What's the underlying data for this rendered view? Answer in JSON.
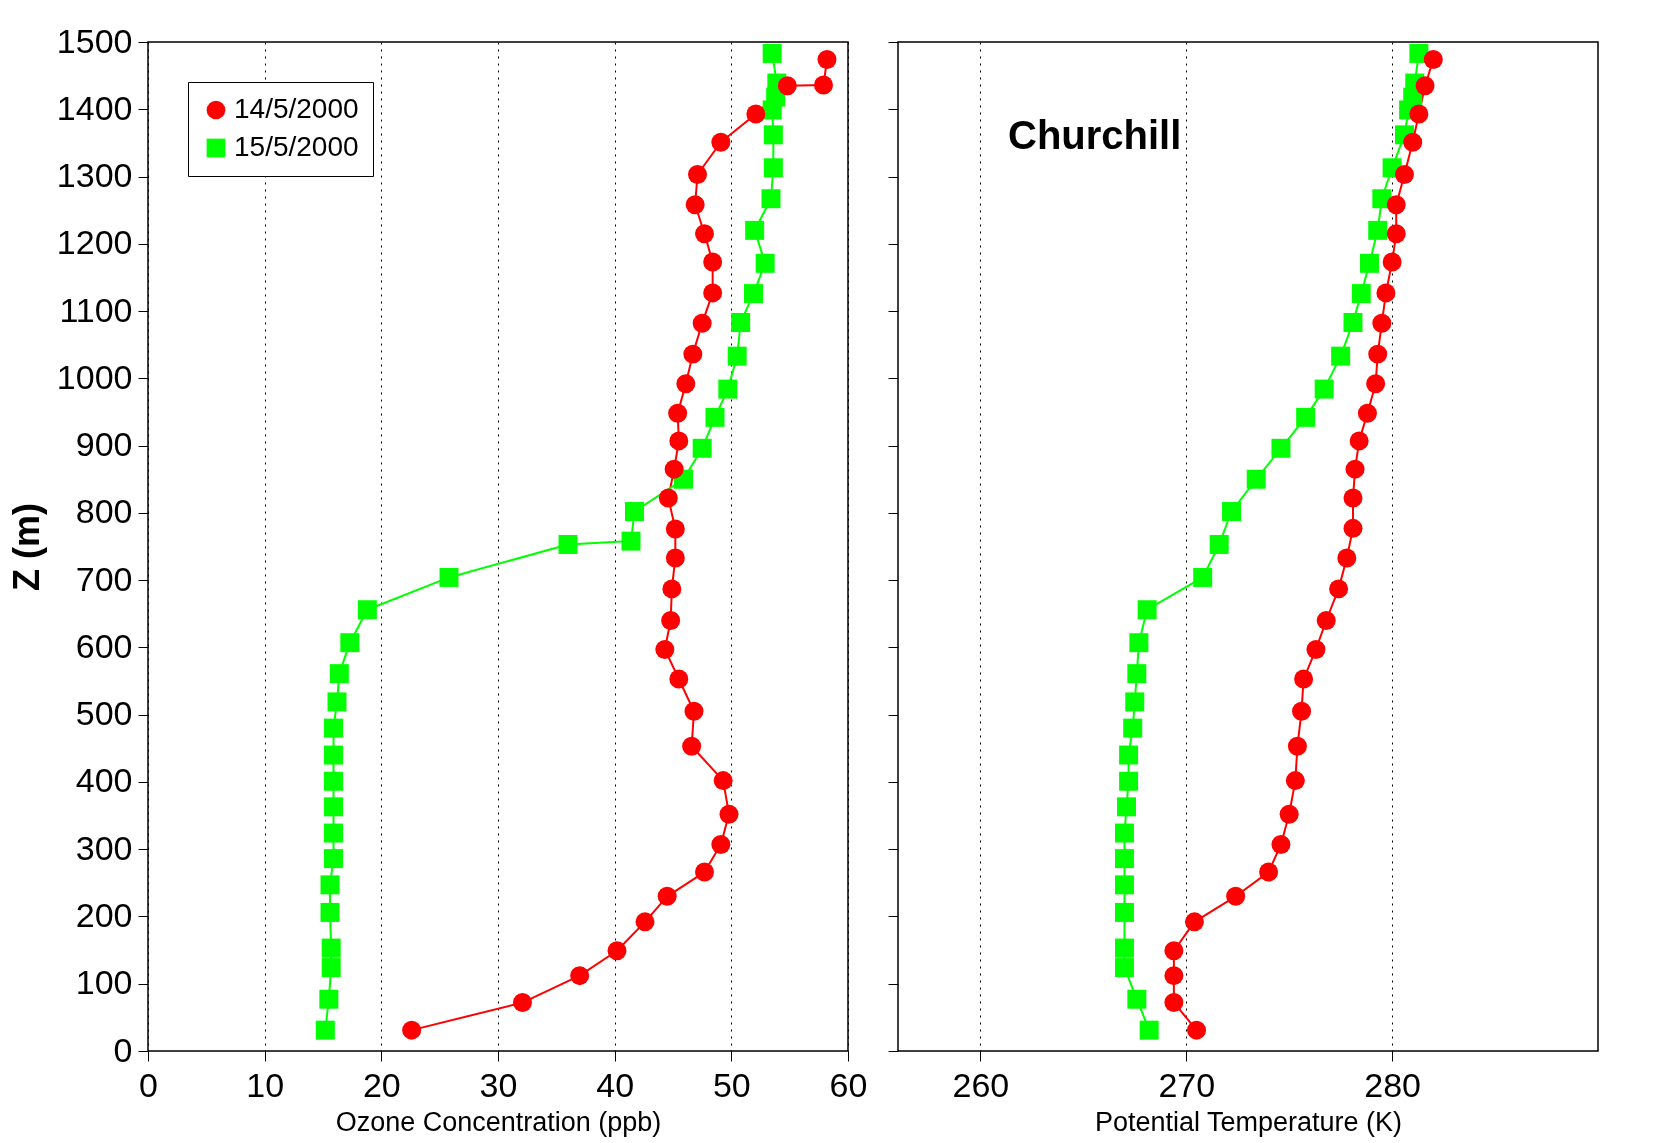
{
  "chart_data": [
    {
      "type": "line",
      "xlabel": "Ozone Concentration (ppb)",
      "ylabel": "Z (m)",
      "xlim": [
        0,
        60
      ],
      "xticks": [
        0,
        10,
        20,
        30,
        40,
        50,
        60
      ],
      "ylim": [
        0,
        1500
      ],
      "yticks": [
        0,
        100,
        200,
        300,
        400,
        500,
        600,
        700,
        800,
        900,
        1000,
        1100,
        1200,
        1300,
        1400,
        1500
      ],
      "grid": "x",
      "legend": "top left",
      "series": [
        {
          "name": "14/5/2000",
          "color": "#ff0000",
          "marker": "circle",
          "x": [
            22.6,
            32.1,
            37.0,
            40.2,
            42.6,
            44.5,
            47.7,
            49.1,
            49.8,
            49.3,
            46.6,
            46.8,
            45.5,
            44.3,
            44.8,
            44.9,
            45.2,
            45.2,
            44.6,
            45.1,
            45.5,
            45.4,
            46.1,
            46.7,
            47.5,
            48.4,
            48.4,
            47.7,
            46.9,
            47.1,
            49.1,
            52.1,
            54.8,
            57.9,
            58.2
          ],
          "values": [
            31,
            72,
            112,
            149,
            192,
            230,
            266,
            307,
            352,
            402,
            453,
            505,
            553,
            597,
            640,
            687,
            733,
            776,
            822,
            865,
            907,
            948,
            992,
            1036,
            1082,
            1127,
            1173,
            1215,
            1258,
            1303,
            1351,
            1393,
            1435,
            1436,
            1474
          ]
        },
        {
          "name": "15/5/2000",
          "color": "#00ff00",
          "marker": "square",
          "x": [
            15.2,
            15.5,
            15.7,
            15.7,
            15.6,
            15.6,
            15.9,
            15.9,
            15.9,
            15.9,
            15.9,
            15.9,
            16.2,
            16.4,
            17.3,
            18.8,
            25.8,
            36.0,
            41.4,
            41.7,
            45.9,
            47.5,
            48.6,
            49.7,
            50.5,
            50.8,
            51.9,
            52.9,
            52.0,
            53.4,
            53.6,
            53.6,
            53.5,
            53.8,
            53.9,
            53.5
          ],
          "values": [
            31,
            77,
            124,
            153,
            206,
            247,
            286,
            324,
            363,
            401,
            440,
            480,
            519,
            561,
            607,
            656,
            704,
            753,
            758,
            802,
            850,
            896,
            942,
            984,
            1033,
            1083,
            1126,
            1171,
            1220,
            1267,
            1313,
            1362,
            1399,
            1418,
            1439,
            1483
          ]
        }
      ]
    },
    {
      "type": "line",
      "xlabel": "Potential Temperature (K)",
      "annotations": [
        "Churchill"
      ],
      "xlim": [
        256,
        290
      ],
      "xticks": [
        260,
        270,
        280
      ],
      "ylim": [
        0,
        1500
      ],
      "yticks": [
        0,
        100,
        200,
        300,
        400,
        500,
        600,
        700,
        800,
        900,
        1000,
        1100,
        1200,
        1300,
        1400,
        1500
      ],
      "grid": "x",
      "tick_labels": "x",
      "series": [
        {
          "color": "#ff0000",
          "marker": "circle",
          "x": [
            270.5,
            269.4,
            269.4,
            269.4,
            270.4,
            272.4,
            274.0,
            274.6,
            275.0,
            275.3,
            275.4,
            275.6,
            275.7,
            276.3,
            276.8,
            277.4,
            277.8,
            278.1,
            278.1,
            278.2,
            278.4,
            278.8,
            279.2,
            279.3,
            279.5,
            279.7,
            280.0,
            280.2,
            280.2,
            280.6,
            281.0,
            281.3,
            281.6,
            282.0
          ],
          "values": [
            31,
            72,
            112,
            149,
            192,
            230,
            266,
            307,
            352,
            402,
            453,
            505,
            553,
            597,
            640,
            687,
            733,
            777,
            822,
            865,
            907,
            948,
            992,
            1036,
            1082,
            1127,
            1173,
            1215,
            1258,
            1303,
            1351,
            1393,
            1435,
            1474
          ]
        },
        {
          "color": "#00ff00",
          "marker": "square",
          "x": [
            268.2,
            267.6,
            267.0,
            267.0,
            267.0,
            267.0,
            267.0,
            267.0,
            267.1,
            267.2,
            267.2,
            267.4,
            267.5,
            267.6,
            267.7,
            268.1,
            270.8,
            271.6,
            272.2,
            273.4,
            274.6,
            275.8,
            276.7,
            277.5,
            278.1,
            278.5,
            278.9,
            279.3,
            279.5,
            280.0,
            280.6,
            280.8,
            281.0,
            281.1,
            281.3
          ],
          "values": [
            31,
            77,
            124,
            153,
            206,
            247,
            286,
            324,
            363,
            401,
            440,
            480,
            519,
            561,
            607,
            656,
            704,
            753,
            802,
            850,
            896,
            942,
            984,
            1033,
            1083,
            1126,
            1171,
            1220,
            1267,
            1313,
            1362,
            1399,
            1418,
            1439,
            1483
          ]
        }
      ]
    }
  ]
}
